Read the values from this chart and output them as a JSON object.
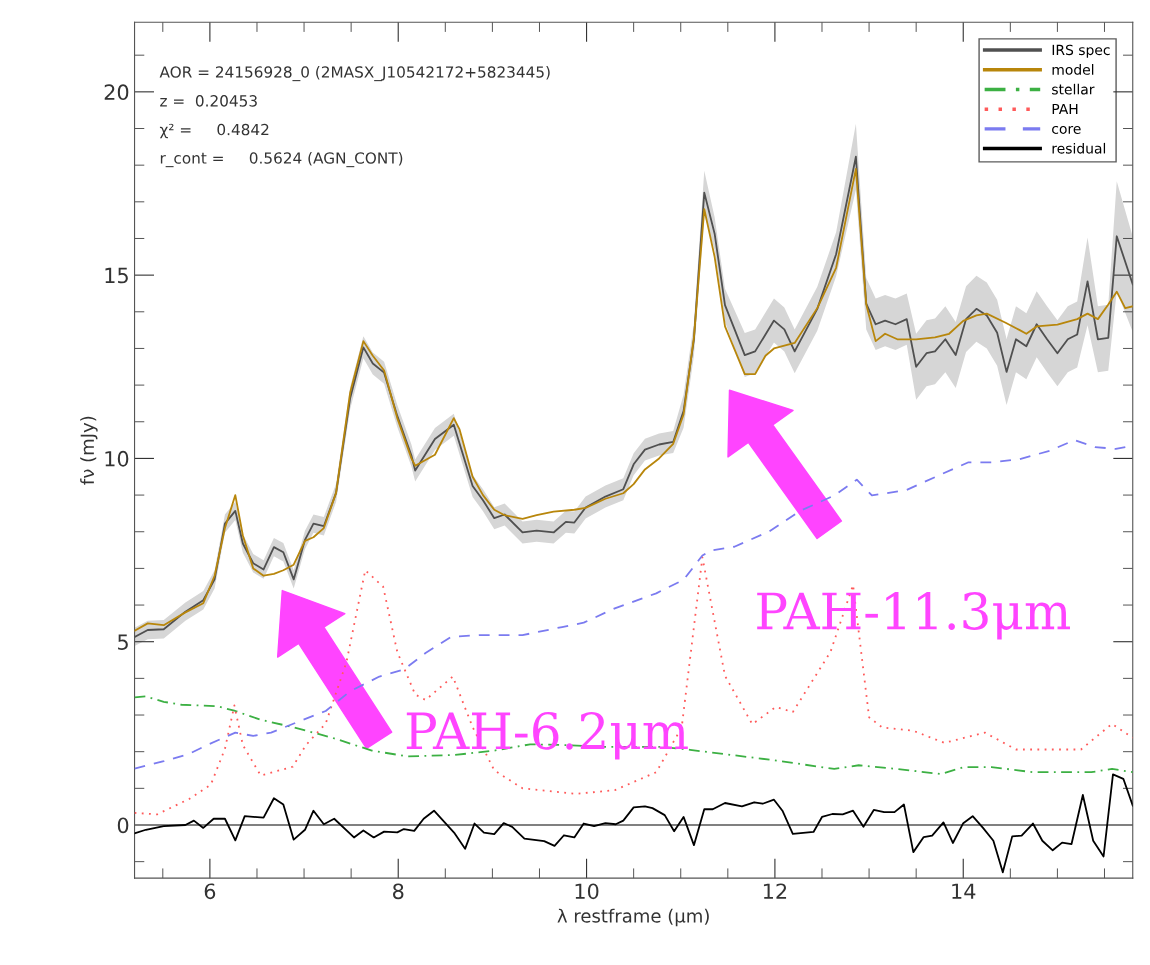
{
  "chart_data": {
    "type": "line",
    "xlabel": "λ restframe (μm)",
    "ylabel": "fν (mJy)",
    "xlim": [
      5.2,
      15.8
    ],
    "xticks": [
      {
        "value": 5.5,
        "label": null
      },
      6,
      {
        "value": 6.5,
        "label": null
      },
      {
        "value": 7,
        "label": null
      },
      {
        "value": 7.5,
        "label": null
      },
      8,
      {
        "value": 8.5,
        "label": null
      },
      {
        "value": 9,
        "label": null
      },
      {
        "value": 9.5,
        "label": null
      },
      10,
      {
        "value": 10.5,
        "label": null
      },
      {
        "value": 11,
        "label": null
      },
      {
        "value": 11.5,
        "label": null
      },
      12,
      {
        "value": 12.5,
        "label": null
      },
      {
        "value": 13,
        "label": null
      },
      {
        "value": 13.5,
        "label": null
      },
      14,
      {
        "value": 14.5,
        "label": null
      },
      {
        "value": 15,
        "label": null
      },
      {
        "value": 15.5,
        "label": null
      }
    ],
    "ylim": [
      -1.45,
      21.9
    ],
    "yticks": [
      {
        "value": -1,
        "label": null
      },
      0,
      {
        "value": 1,
        "label": null
      },
      {
        "value": 2,
        "label": null
      },
      {
        "value": 3,
        "label": null
      },
      {
        "value": 4,
        "label": null
      },
      5,
      {
        "value": 6,
        "label": null
      },
      {
        "value": 7,
        "label": null
      },
      {
        "value": 8,
        "label": null
      },
      {
        "value": 9,
        "label": null
      },
      10,
      {
        "value": 11,
        "label": null
      },
      {
        "value": 12,
        "label": null
      },
      {
        "value": 13,
        "label": null
      },
      {
        "value": 14,
        "label": null
      },
      15,
      {
        "value": 16,
        "label": null
      },
      {
        "value": 17,
        "label": null
      },
      {
        "value": 18,
        "label": null
      },
      {
        "value": 19,
        "label": null
      },
      20,
      {
        "value": 21,
        "label": null
      }
    ],
    "grid": false,
    "legend": "top right",
    "ref_lines": [
      {
        "axis": "y",
        "value": 0,
        "color": "#808080"
      }
    ],
    "annotations": [
      "AOR = 24156928_0 (2MASX_J10542172+5823445)",
      "z =  0.20453",
      "χ² =     0.4842",
      "r_cont =     0.5624 (AGN_CONT)",
      "PAH-6.2μm",
      "PAH-11.3μm"
    ],
    "series": [
      {
        "name": "IRS spec",
        "color": "#505050",
        "line_style": "solid",
        "x": [
          5.2,
          5.34,
          5.51,
          5.74,
          5.93,
          6.05,
          6.16,
          6.27,
          6.35,
          6.46,
          6.57,
          6.68,
          6.78,
          6.89,
          7.01,
          7.1,
          7.21,
          7.34,
          7.49,
          7.63,
          7.73,
          7.85,
          7.99,
          8.14,
          8.18,
          8.39,
          8.59,
          8.79,
          8.9,
          9.02,
          9.13,
          9.32,
          9.47,
          9.65,
          9.78,
          9.87,
          9.99,
          10.2,
          10.39,
          10.5,
          10.62,
          10.77,
          10.92,
          11.03,
          11.14,
          11.25,
          11.36,
          11.47,
          11.68,
          11.79,
          11.99,
          12.1,
          12.21,
          12.45,
          12.65,
          12.86,
          12.97,
          13.07,
          13.17,
          13.28,
          13.4,
          13.5,
          13.61,
          13.7,
          13.81,
          13.92,
          14.03,
          14.14,
          14.25,
          14.36,
          14.46,
          14.56,
          14.67,
          14.78,
          14.89,
          15.0,
          15.11,
          15.21,
          15.32,
          15.43,
          15.54,
          15.63,
          15.8
        ],
        "values": [
          5.13,
          5.32,
          5.34,
          5.82,
          6.13,
          6.7,
          8.22,
          8.57,
          7.68,
          7.14,
          6.97,
          7.58,
          7.44,
          6.7,
          7.78,
          8.22,
          8.15,
          9.06,
          11.65,
          13.03,
          12.59,
          12.34,
          11.16,
          10.08,
          9.67,
          10.53,
          10.92,
          9.25,
          8.86,
          8.37,
          8.47,
          7.98,
          8.03,
          7.98,
          8.27,
          8.25,
          8.66,
          8.96,
          9.16,
          9.84,
          10.24,
          10.38,
          10.45,
          11.29,
          13.25,
          17.25,
          16.13,
          14.18,
          12.82,
          12.92,
          13.76,
          13.52,
          12.92,
          14.08,
          15.57,
          18.23,
          14.22,
          13.66,
          13.76,
          13.66,
          13.8,
          12.5,
          12.87,
          12.92,
          13.25,
          12.82,
          13.8,
          14.08,
          13.9,
          13.43,
          12.36,
          13.25,
          13.06,
          13.66,
          13.25,
          12.87,
          13.25,
          13.38,
          14.83,
          13.25,
          13.29,
          16.06,
          14.75
        ],
        "lower": [
          4.88,
          5.07,
          5.09,
          5.57,
          5.88,
          6.45,
          7.97,
          8.32,
          7.43,
          6.89,
          6.72,
          7.33,
          7.19,
          6.45,
          7.53,
          7.97,
          7.9,
          8.81,
          11.35,
          12.73,
          12.29,
          12.04,
          10.86,
          9.78,
          9.37,
          10.23,
          10.62,
          8.95,
          8.56,
          8.07,
          8.17,
          7.68,
          7.73,
          7.68,
          7.97,
          7.95,
          8.36,
          8.66,
          8.86,
          9.54,
          9.94,
          10.08,
          10.15,
          10.84,
          12.8,
          16.65,
          15.68,
          13.73,
          12.22,
          12.32,
          13.16,
          12.92,
          12.32,
          13.48,
          14.97,
          17.33,
          13.52,
          12.96,
          13.06,
          12.96,
          13.1,
          11.6,
          11.97,
          12.02,
          12.35,
          11.92,
          12.9,
          13.18,
          13.0,
          12.53,
          11.46,
          12.35,
          12.16,
          12.76,
          12.35,
          11.97,
          12.35,
          12.48,
          13.63,
          12.35,
          12.39,
          14.56,
          13.45
        ],
        "upper": [
          5.38,
          5.57,
          5.59,
          6.07,
          6.38,
          6.95,
          8.47,
          8.82,
          7.93,
          7.39,
          7.22,
          7.83,
          7.69,
          6.95,
          8.03,
          8.47,
          8.4,
          9.31,
          11.95,
          13.33,
          12.89,
          12.64,
          11.46,
          10.38,
          9.97,
          10.83,
          11.22,
          9.55,
          9.16,
          8.67,
          8.77,
          8.28,
          8.33,
          8.28,
          8.57,
          8.55,
          8.96,
          9.26,
          9.46,
          10.14,
          10.54,
          10.68,
          10.75,
          11.74,
          13.7,
          17.85,
          16.58,
          14.63,
          13.42,
          13.52,
          14.36,
          14.12,
          13.52,
          14.68,
          16.17,
          19.13,
          14.92,
          14.36,
          14.46,
          14.36,
          14.5,
          13.4,
          13.77,
          13.82,
          14.15,
          13.72,
          14.7,
          14.98,
          14.8,
          14.33,
          13.26,
          14.15,
          13.96,
          14.56,
          14.15,
          13.77,
          14.15,
          14.28,
          16.03,
          14.15,
          14.19,
          17.56,
          16.05
        ]
      },
      {
        "name": "model",
        "color": "#b8860b",
        "line_style": "solid",
        "x": [
          5.2,
          5.34,
          5.51,
          5.74,
          5.93,
          6.05,
          6.16,
          6.27,
          6.35,
          6.46,
          6.57,
          6.68,
          6.78,
          6.89,
          7.01,
          7.1,
          7.21,
          7.34,
          7.49,
          7.63,
          7.73,
          7.85,
          7.99,
          8.14,
          8.18,
          8.39,
          8.59,
          8.65,
          8.79,
          8.9,
          9.02,
          9.13,
          9.32,
          9.47,
          9.65,
          9.87,
          9.99,
          10.2,
          10.39,
          10.5,
          10.62,
          10.77,
          10.92,
          11.03,
          11.14,
          11.25,
          11.36,
          11.47,
          11.68,
          11.79,
          11.9,
          11.99,
          12.21,
          12.45,
          12.65,
          12.86,
          12.97,
          13.07,
          13.17,
          13.3,
          13.5,
          13.7,
          13.85,
          14.0,
          14.14,
          14.25,
          14.45,
          14.6,
          14.67,
          14.78,
          15.0,
          15.21,
          15.32,
          15.43,
          15.54,
          15.63,
          15.72,
          15.8
        ],
        "values": [
          5.3,
          5.5,
          5.45,
          5.8,
          6.05,
          6.8,
          8.1,
          9.0,
          7.9,
          7.0,
          6.8,
          6.85,
          6.95,
          7.1,
          7.75,
          7.85,
          8.1,
          9.06,
          11.8,
          13.2,
          12.8,
          12.4,
          11.1,
          10.0,
          9.8,
          10.1,
          11.1,
          10.8,
          9.5,
          9.0,
          8.6,
          8.45,
          8.35,
          8.45,
          8.55,
          8.6,
          8.65,
          8.9,
          9.05,
          9.3,
          9.7,
          10.0,
          10.4,
          11.2,
          13.3,
          16.8,
          15.5,
          13.6,
          12.3,
          12.3,
          12.8,
          13.0,
          13.15,
          14.1,
          15.2,
          17.9,
          14.2,
          13.2,
          13.4,
          13.25,
          13.25,
          13.3,
          13.4,
          13.75,
          13.9,
          13.95,
          13.7,
          13.5,
          13.4,
          13.6,
          13.65,
          13.8,
          13.95,
          13.8,
          14.2,
          14.55,
          14.1,
          14.15
        ]
      },
      {
        "name": "stellar",
        "color": "#3cb043",
        "line_style": "dashdot",
        "x": [
          5.2,
          5.32,
          5.51,
          5.7,
          6.08,
          6.27,
          6.54,
          6.88,
          7.3,
          7.72,
          8.1,
          8.6,
          9.02,
          9.4,
          9.78,
          10.16,
          10.8,
          11.1,
          11.98,
          12.63,
          12.89,
          13.29,
          13.76,
          14.01,
          14.3,
          14.74,
          15.36,
          15.58,
          15.8
        ],
        "values": [
          3.48,
          3.51,
          3.36,
          3.28,
          3.24,
          3.11,
          2.87,
          2.67,
          2.38,
          2.03,
          1.87,
          1.91,
          2.03,
          2.2,
          2.18,
          2.13,
          2.13,
          2.05,
          1.77,
          1.53,
          1.63,
          1.53,
          1.39,
          1.58,
          1.58,
          1.44,
          1.44,
          1.53,
          1.44
        ]
      },
      {
        "name": "PAH",
        "color": "#ff5a5a",
        "line_style": "dotted",
        "x": [
          5.2,
          5.44,
          5.78,
          6.01,
          6.16,
          6.26,
          6.35,
          6.54,
          6.88,
          7.02,
          7.23,
          7.45,
          7.65,
          7.84,
          7.99,
          8.18,
          8.29,
          8.58,
          8.79,
          9.02,
          9.32,
          9.89,
          10.3,
          10.74,
          11.01,
          11.23,
          11.47,
          11.76,
          12.01,
          12.19,
          12.59,
          12.83,
          13.0,
          13.14,
          13.47,
          13.8,
          14.23,
          14.56,
          15.25,
          15.58,
          15.8
        ],
        "values": [
          0.33,
          0.29,
          0.71,
          1.1,
          2.08,
          3.26,
          2.18,
          1.35,
          1.59,
          2.18,
          2.77,
          4.44,
          6.95,
          6.5,
          4.72,
          3.56,
          3.41,
          4.05,
          2.67,
          1.49,
          1.0,
          0.85,
          0.95,
          1.44,
          2.66,
          7.3,
          4.07,
          2.75,
          3.22,
          3.08,
          4.72,
          6.55,
          2.94,
          2.66,
          2.57,
          2.24,
          2.52,
          2.06,
          2.06,
          2.76,
          2.38
        ]
      },
      {
        "name": "core",
        "color": "#7b7bf0",
        "line_style": "dashed",
        "x": [
          5.2,
          5.51,
          5.78,
          5.97,
          6.27,
          6.46,
          6.65,
          6.99,
          7.23,
          7.49,
          7.8,
          8.06,
          8.29,
          8.56,
          8.86,
          9.32,
          9.74,
          9.97,
          10.3,
          10.74,
          11.03,
          11.23,
          11.32,
          11.57,
          11.94,
          12.27,
          12.63,
          12.87,
          13.03,
          13.4,
          13.76,
          14.05,
          14.3,
          14.6,
          14.92,
          15.18,
          15.4,
          15.62,
          15.8
        ],
        "values": [
          1.54,
          1.74,
          1.94,
          2.18,
          2.52,
          2.43,
          2.52,
          2.87,
          3.11,
          3.65,
          4.05,
          4.24,
          4.69,
          5.13,
          5.18,
          5.18,
          5.4,
          5.52,
          5.91,
          6.32,
          6.69,
          7.35,
          7.49,
          7.59,
          8.01,
          8.57,
          8.99,
          9.42,
          8.99,
          9.14,
          9.56,
          9.89,
          9.89,
          9.98,
          10.21,
          10.5,
          10.31,
          10.26,
          10.35
        ]
      },
      {
        "name": "residual",
        "color": "#000000",
        "line_style": "solid",
        "x": [
          5.2,
          5.32,
          5.51,
          5.74,
          5.83,
          5.93,
          6.04,
          6.16,
          6.27,
          6.37,
          6.57,
          6.68,
          6.78,
          6.89,
          7.01,
          7.1,
          7.21,
          7.32,
          7.53,
          7.63,
          7.74,
          7.85,
          7.99,
          8.06,
          8.17,
          8.27,
          8.38,
          8.6,
          8.71,
          8.81,
          8.91,
          9.02,
          9.12,
          9.21,
          9.34,
          9.55,
          9.66,
          9.76,
          9.87,
          9.97,
          10.08,
          10.2,
          10.31,
          10.39,
          10.5,
          10.62,
          10.7,
          10.83,
          10.93,
          11.03,
          11.14,
          11.25,
          11.34,
          11.47,
          11.65,
          11.78,
          11.87,
          11.99,
          12.08,
          12.19,
          12.41,
          12.5,
          12.61,
          12.72,
          12.83,
          12.94,
          13.05,
          13.16,
          13.27,
          13.37,
          13.47,
          13.58,
          13.67,
          13.79,
          13.89,
          14.0,
          14.1,
          14.21,
          14.32,
          14.42,
          14.52,
          14.62,
          14.74,
          14.84,
          14.95,
          15.05,
          15.15,
          15.27,
          15.38,
          15.49,
          15.59,
          15.7,
          15.8
        ],
        "values": [
          -0.23,
          -0.13,
          -0.03,
          0,
          0.12,
          -0.08,
          0.17,
          0.17,
          -0.42,
          0.24,
          0.2,
          0.73,
          0.56,
          -0.4,
          -0.13,
          0.39,
          0.02,
          0.17,
          -0.34,
          -0.15,
          -0.34,
          -0.18,
          -0.2,
          -0.11,
          -0.16,
          0.17,
          0.39,
          -0.23,
          -0.65,
          0.04,
          -0.21,
          -0.25,
          0.05,
          -0.05,
          -0.37,
          -0.44,
          -0.57,
          -0.28,
          -0.34,
          0.04,
          -0.03,
          0.05,
          0.02,
          0.12,
          0.48,
          0.51,
          0.46,
          0.27,
          -0.17,
          0.22,
          -0.55,
          0.43,
          0.43,
          0.6,
          0.51,
          0.62,
          0.58,
          0.69,
          0.39,
          -0.24,
          -0.19,
          0.22,
          0.3,
          0.29,
          0.39,
          -0.05,
          0.41,
          0.35,
          0.35,
          0.56,
          -0.74,
          -0.33,
          -0.29,
          0.07,
          -0.49,
          0.05,
          0.24,
          -0.08,
          -0.43,
          -1.29,
          -0.31,
          -0.29,
          0.04,
          -0.43,
          -0.69,
          -0.48,
          -0.52,
          0.82,
          -0.43,
          -0.86,
          1.38,
          1.26,
          0.53
        ]
      }
    ]
  }
}
